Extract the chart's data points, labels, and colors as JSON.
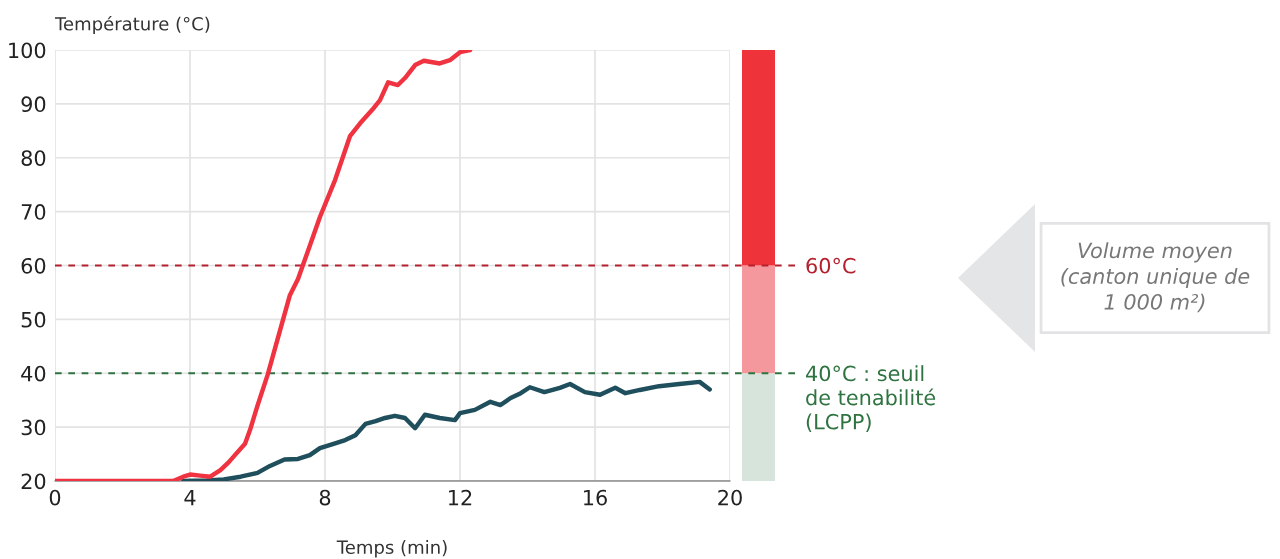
{
  "chart_data": {
    "type": "line",
    "xlabel": "Temps (min)",
    "ylabel": "Température (°C)",
    "xlim": [
      0,
      20
    ],
    "ylim": [
      20,
      100
    ],
    "xticks": [
      0,
      4,
      8,
      12,
      16,
      20
    ],
    "yticks": [
      20,
      30,
      40,
      50,
      60,
      70,
      80,
      90,
      100
    ],
    "grid": true,
    "legend": false,
    "marker": "none",
    "line_style": "solid",
    "series": [
      {
        "color": "#ef3340",
        "x": [
          0,
          1,
          2,
          3,
          3.5,
          3.8,
          4.0,
          4.3,
          4.6,
          4.9,
          5.15,
          5.33,
          5.63,
          5.78,
          6.0,
          6.3,
          6.67,
          6.96,
          7.2,
          7.4,
          7.85,
          8.3,
          8.74,
          9.04,
          9.4,
          9.63,
          9.87,
          10.16,
          10.37,
          10.67,
          10.93,
          11.4,
          11.7,
          12.0,
          12.3
        ],
        "values": [
          20,
          20,
          20,
          20,
          20,
          20.8,
          21.2,
          21,
          20.8,
          22,
          23.5,
          24.8,
          26.9,
          29.5,
          34,
          39.7,
          48,
          54.5,
          57.5,
          61,
          69,
          75.9,
          84,
          86.4,
          88.9,
          90.7,
          94,
          93.5,
          94.8,
          97.2,
          98,
          97.5,
          98.1,
          99.6,
          100
        ]
      },
      {
        "color": "#1f4f5c",
        "x": [
          3.8,
          4.5,
          5.0,
          5.5,
          6.0,
          6.37,
          6.8,
          7.2,
          7.55,
          7.85,
          8.3,
          8.6,
          8.9,
          9.2,
          9.5,
          9.78,
          10.07,
          10.37,
          10.67,
          10.96,
          11.4,
          11.85,
          12.0,
          12.44,
          12.9,
          13.2,
          13.5,
          13.8,
          14.07,
          14.5,
          14.96,
          15.26,
          15.7,
          16.15,
          16.6,
          16.9,
          17.33,
          17.9,
          18.5,
          19.1,
          19.4
        ],
        "values": [
          20,
          20.1,
          20.3,
          20.8,
          21.5,
          22.8,
          24,
          24.1,
          24.8,
          26.1,
          27,
          27.6,
          28.5,
          30.6,
          31.1,
          31.7,
          32.1,
          31.7,
          29.8,
          32.3,
          31.7,
          31.3,
          32.6,
          33.2,
          34.7,
          34.1,
          35.4,
          36.3,
          37.4,
          36.5,
          37.3,
          38,
          36.5,
          36,
          37.3,
          36.3,
          36.9,
          37.6,
          38,
          38.4,
          37
        ]
      }
    ],
    "ref_lines": [
      {
        "axis": "y",
        "value": 60,
        "label": "60°C",
        "color": "#b5202e",
        "line_style": "dotted"
      },
      {
        "axis": "y",
        "value": 40,
        "label": "40°C : seuil\nde tenabilité\n(LCPP)",
        "color": "#2e7340",
        "line_style": "dotted"
      }
    ],
    "annotations": [
      "Volume moyen\n(canton unique de\n1 000 m²)"
    ]
  }
}
